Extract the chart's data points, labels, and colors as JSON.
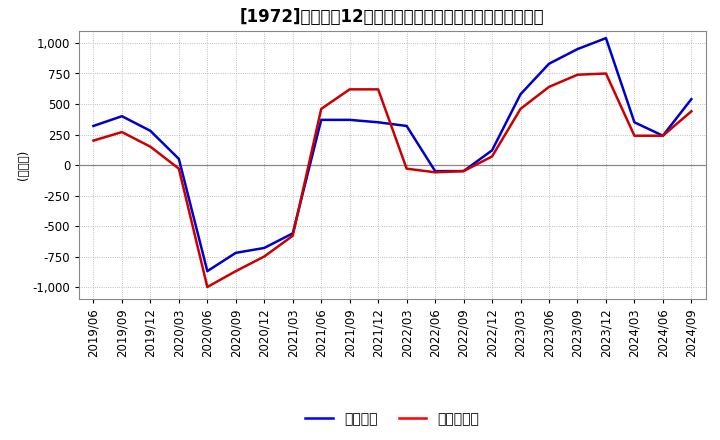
{
  "title": "[1972]　利益の12か月移動合計の対前年同期増減額の推移",
  "ylabel": "(百万円)",
  "ylim": [
    -1100,
    1100
  ],
  "yticks": [
    -1000,
    -750,
    -500,
    -250,
    0,
    250,
    500,
    750,
    1000
  ],
  "legend_labels": [
    "経常利益",
    "当期純利益"
  ],
  "legend_colors": [
    "#0000ff",
    "#ff0000"
  ],
  "dates": [
    "2019/06",
    "2019/09",
    "2019/12",
    "2020/03",
    "2020/06",
    "2020/09",
    "2020/12",
    "2021/03",
    "2021/06",
    "2021/09",
    "2021/12",
    "2022/03",
    "2022/06",
    "2022/09",
    "2022/12",
    "2023/03",
    "2023/06",
    "2023/09",
    "2023/12",
    "2024/03",
    "2024/06",
    "2024/09"
  ],
  "ordinary_income": [
    320,
    400,
    280,
    50,
    -870,
    -720,
    -680,
    -560,
    370,
    370,
    350,
    320,
    -50,
    -50,
    120,
    580,
    830,
    950,
    1040,
    350,
    240,
    540
  ],
  "net_income": [
    200,
    270,
    150,
    -30,
    -1000,
    -870,
    -750,
    -580,
    460,
    620,
    620,
    -30,
    -60,
    -50,
    70,
    460,
    640,
    740,
    750,
    240,
    240,
    440
  ],
  "line_color_ordinary": "#0000cc",
  "line_color_net": "#cc0000",
  "bg_color": "#ffffff",
  "grid_color": "#aaaaaa",
  "zero_line_color": "#888888",
  "title_fontsize": 12,
  "axis_fontsize": 8.5
}
